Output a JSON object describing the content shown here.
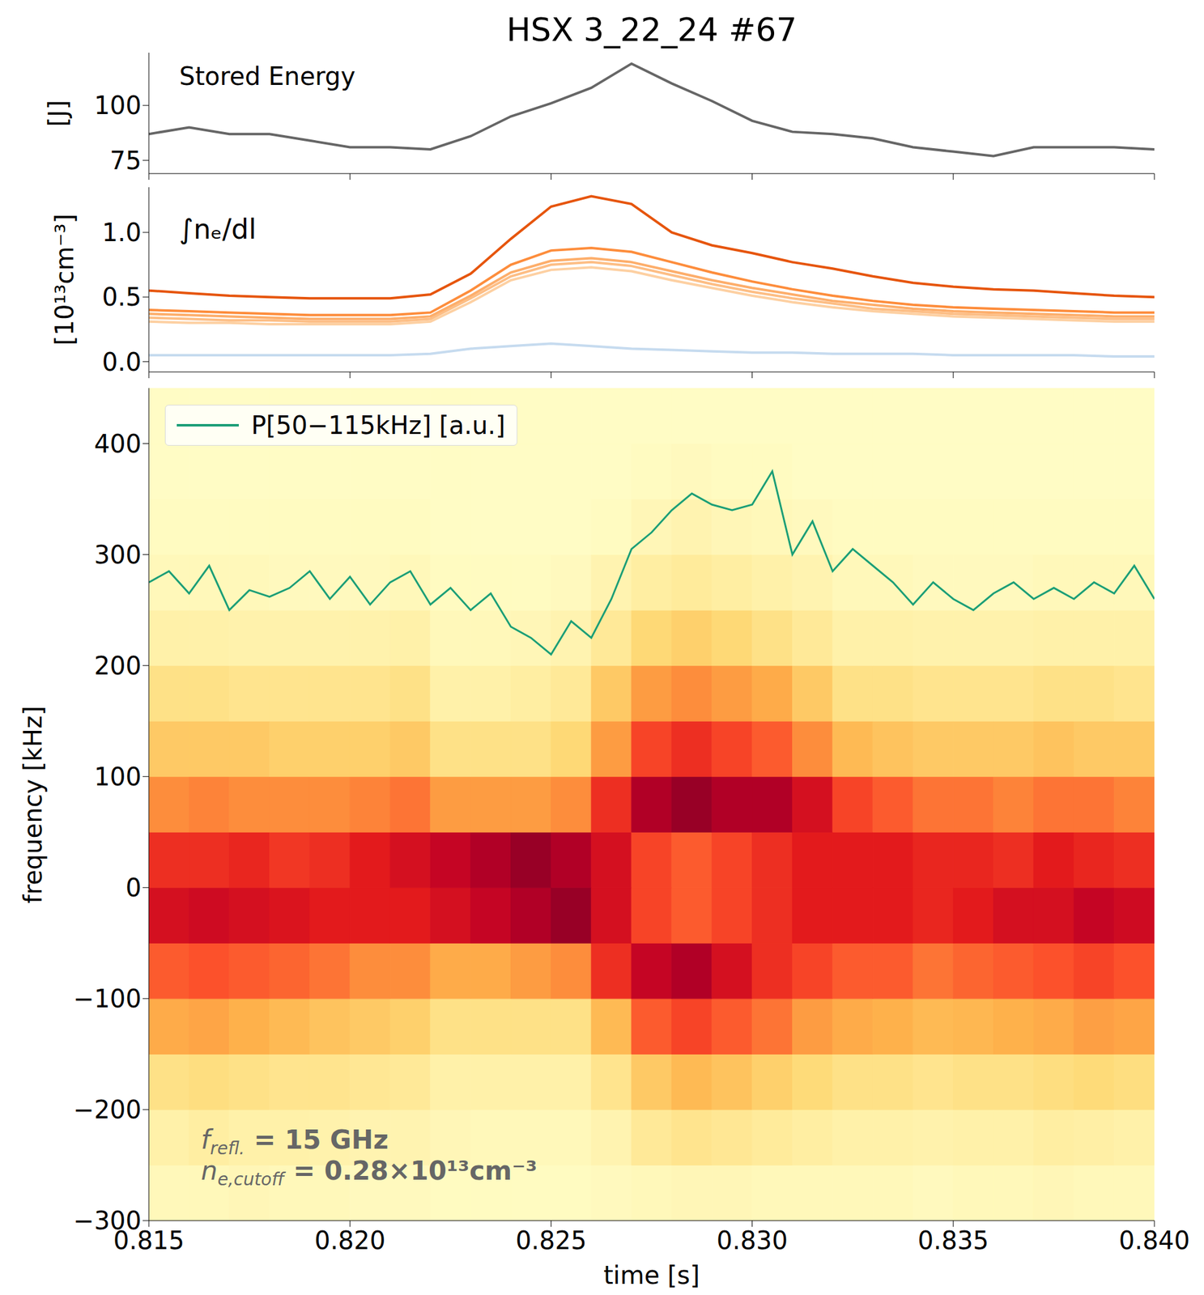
{
  "chart_data": [
    {
      "type": "line",
      "title": "HSX 3_22_24 #67",
      "annotations": [
        "Stored Energy"
      ],
      "ylabel": "[J]",
      "x": [
        0.815,
        0.816,
        0.817,
        0.818,
        0.819,
        0.82,
        0.821,
        0.822,
        0.823,
        0.824,
        0.825,
        0.826,
        0.827,
        0.828,
        0.829,
        0.83,
        0.831,
        0.832,
        0.833,
        0.834,
        0.835,
        0.836,
        0.837,
        0.838,
        0.839,
        0.84
      ],
      "xlim": [
        0.815,
        0.84
      ],
      "xticks": [
        0.815,
        0.82,
        0.825,
        0.83,
        0.835,
        0.84
      ],
      "ylim": [
        69,
        124
      ],
      "yticks": [
        75,
        100
      ],
      "tick_labels": "y",
      "series": [
        {
          "color": "#666666",
          "values": [
            87,
            90,
            87,
            87,
            84,
            81,
            81,
            80,
            86,
            95,
            101,
            108,
            119,
            110,
            102,
            93,
            88,
            87,
            85,
            81,
            79,
            77,
            81,
            81,
            81,
            80
          ]
        }
      ]
    },
    {
      "type": "line",
      "annotations": [
        "∫nₑ/dl"
      ],
      "ylabel": "[10¹³cm⁻³]",
      "x": [
        0.815,
        0.816,
        0.817,
        0.818,
        0.819,
        0.82,
        0.821,
        0.822,
        0.823,
        0.824,
        0.825,
        0.826,
        0.827,
        0.828,
        0.829,
        0.83,
        0.831,
        0.832,
        0.833,
        0.834,
        0.835,
        0.836,
        0.837,
        0.838,
        0.839,
        0.84
      ],
      "xlim": [
        0.815,
        0.84
      ],
      "xticks": [
        0.815,
        0.82,
        0.825,
        0.83,
        0.835,
        0.84
      ],
      "ylim": [
        -0.08,
        1.35
      ],
      "yticks": [
        {
          "value": 0,
          "label": "0.0"
        },
        0.5,
        {
          "value": 1,
          "label": "1.0"
        }
      ],
      "tick_labels": "y",
      "series": [
        {
          "color": "#c6dbef",
          "values": [
            0.05,
            0.05,
            0.05,
            0.05,
            0.05,
            0.05,
            0.05,
            0.06,
            0.1,
            0.12,
            0.14,
            0.12,
            0.1,
            0.09,
            0.08,
            0.07,
            0.07,
            0.06,
            0.06,
            0.06,
            0.05,
            0.05,
            0.05,
            0.05,
            0.04,
            0.04
          ]
        },
        {
          "color": "#fdd0a2",
          "values": [
            0.31,
            0.3,
            0.3,
            0.29,
            0.29,
            0.29,
            0.29,
            0.31,
            0.46,
            0.63,
            0.71,
            0.73,
            0.7,
            0.63,
            0.57,
            0.51,
            0.46,
            0.42,
            0.39,
            0.37,
            0.35,
            0.34,
            0.33,
            0.32,
            0.31,
            0.31
          ]
        },
        {
          "color": "#fdbe85",
          "values": [
            0.34,
            0.33,
            0.32,
            0.32,
            0.31,
            0.31,
            0.31,
            0.33,
            0.49,
            0.66,
            0.75,
            0.77,
            0.74,
            0.67,
            0.6,
            0.54,
            0.49,
            0.45,
            0.41,
            0.39,
            0.37,
            0.36,
            0.35,
            0.34,
            0.33,
            0.33
          ]
        },
        {
          "color": "#fdae6b",
          "values": [
            0.37,
            0.36,
            0.35,
            0.34,
            0.33,
            0.33,
            0.33,
            0.35,
            0.51,
            0.69,
            0.78,
            0.8,
            0.77,
            0.7,
            0.63,
            0.57,
            0.52,
            0.47,
            0.44,
            0.41,
            0.39,
            0.38,
            0.37,
            0.36,
            0.35,
            0.35
          ]
        },
        {
          "color": "#fd8d3c",
          "values": [
            0.4,
            0.39,
            0.38,
            0.37,
            0.36,
            0.36,
            0.36,
            0.38,
            0.55,
            0.75,
            0.86,
            0.88,
            0.85,
            0.77,
            0.69,
            0.62,
            0.56,
            0.51,
            0.47,
            0.44,
            0.42,
            0.41,
            0.4,
            0.39,
            0.38,
            0.38
          ]
        },
        {
          "color": "#e6550d",
          "values": [
            0.55,
            0.53,
            0.51,
            0.5,
            0.49,
            0.49,
            0.49,
            0.52,
            0.68,
            0.95,
            1.2,
            1.28,
            1.22,
            1.0,
            0.9,
            0.84,
            0.77,
            0.72,
            0.66,
            0.61,
            0.58,
            0.56,
            0.55,
            0.53,
            0.51,
            0.5
          ]
        }
      ]
    },
    {
      "type": "heatmap",
      "xlabel": "time [s]",
      "ylabel": "frequency [kHz]",
      "xlim": [
        0.815,
        0.84
      ],
      "xticks": [
        0.815,
        {
          "value": 0.82,
          "label": "0.820"
        },
        0.825,
        {
          "value": 0.83,
          "label": "0.830"
        },
        0.835,
        {
          "value": 0.84,
          "label": "0.840"
        }
      ],
      "ylim": [
        -300,
        450
      ],
      "yticks": [
        {
          "value": -300,
          "label": "−300"
        },
        {
          "value": -200,
          "label": "−200"
        },
        {
          "value": -100,
          "label": "−100"
        },
        0,
        100,
        200,
        300,
        400
      ],
      "legend": "upper left",
      "x_edges": [
        0.815,
        0.816,
        0.817,
        0.818,
        0.819,
        0.82,
        0.821,
        0.822,
        0.823,
        0.824,
        0.825,
        0.826,
        0.827,
        0.828,
        0.829,
        0.83,
        0.831,
        0.832,
        0.833,
        0.834,
        0.835,
        0.836,
        0.837,
        0.838,
        0.839,
        0.84
      ],
      "y_edges": [
        -300,
        -250,
        -200,
        -150,
        -100,
        -50,
        0,
        50,
        100,
        150,
        200,
        250,
        300,
        350,
        400,
        450
      ],
      "zlim": [
        0,
        10
      ],
      "cells": [
        [
          0.5,
          0.5,
          0.6,
          0.5,
          0.5,
          0.4,
          0.4,
          0.3,
          0.3,
          0.3,
          0.3,
          0.4,
          0.5,
          0.6,
          0.6,
          0.5,
          0.5,
          0.5,
          0.5,
          0.4,
          0.5,
          0.5,
          0.6,
          0.5,
          0.5
        ],
        [
          1,
          1.2,
          1,
          1,
          0.9,
          0.8,
          0.8,
          0.6,
          0.5,
          0.5,
          0.5,
          0.8,
          1.5,
          1.8,
          1.6,
          1.4,
          1.2,
          1,
          1,
          0.9,
          1,
          1,
          1.2,
          1.1,
          1
        ],
        [
          2,
          2.2,
          2,
          1.8,
          1.8,
          1.6,
          1.5,
          1,
          1,
          1,
          1,
          1.8,
          3,
          3.5,
          3.2,
          2.8,
          2.4,
          2,
          2,
          1.8,
          2,
          2,
          2.2,
          2.4,
          2.2
        ],
        [
          4,
          4.2,
          3.8,
          3.5,
          3.2,
          3,
          2.8,
          2,
          2,
          2,
          2,
          3.5,
          6,
          6.5,
          6,
          5.5,
          4.5,
          4,
          3.8,
          3.5,
          3.6,
          3.8,
          4,
          4.4,
          4.2
        ],
        [
          6,
          6.2,
          6,
          5.8,
          5.5,
          5,
          5,
          4,
          4,
          4.5,
          5,
          7,
          8.5,
          9,
          8,
          7,
          6.5,
          6,
          6,
          5.5,
          5.8,
          6,
          6.2,
          6.5,
          6.2
        ],
        [
          8,
          8.2,
          8,
          7.8,
          7.5,
          7.5,
          7.5,
          8,
          8.5,
          9,
          9.5,
          8,
          6.5,
          6,
          6.5,
          7,
          7.5,
          7.5,
          7.5,
          7.2,
          7.5,
          8,
          8,
          8.5,
          8.2
        ],
        [
          7,
          7,
          7.2,
          6.8,
          7,
          7.5,
          8,
          8.5,
          9,
          9.5,
          9,
          8,
          6.5,
          6,
          6.5,
          7,
          7.5,
          7.5,
          7.5,
          7.2,
          7.2,
          7,
          7.5,
          7.2,
          7
        ],
        [
          5,
          5.2,
          5,
          5,
          5,
          5.2,
          5.5,
          4.5,
          4.5,
          4.5,
          5,
          7,
          9,
          9.5,
          9,
          9,
          8,
          6.5,
          6,
          5.5,
          5.5,
          5.2,
          5.5,
          5.5,
          5.2
        ],
        [
          3,
          3,
          3,
          2.8,
          2.8,
          2.8,
          3,
          2,
          2,
          2,
          2.5,
          4.5,
          6.5,
          7,
          6.5,
          6,
          5,
          3.5,
          3.2,
          3,
          3,
          3,
          3.2,
          3,
          3
        ],
        [
          2,
          2,
          1.8,
          1.8,
          1.8,
          1.8,
          2,
          1,
          1,
          1.2,
          1.5,
          3,
          4.5,
          5,
          4.5,
          4,
          3,
          2,
          2,
          1.8,
          1.8,
          1.8,
          2,
          2,
          1.8
        ],
        [
          1,
          1,
          0.9,
          0.9,
          0.9,
          0.9,
          1,
          0.5,
          0.5,
          0.6,
          0.8,
          1.5,
          2.5,
          2.8,
          2.5,
          2,
          1.5,
          1,
          1,
          0.9,
          0.9,
          0.9,
          1,
          1,
          1
        ],
        [
          0.5,
          0.5,
          0.5,
          0.4,
          0.4,
          0.4,
          0.5,
          0.3,
          0.3,
          0.3,
          0.4,
          0.8,
          1.2,
          1.4,
          1.2,
          1,
          0.8,
          0.5,
          0.5,
          0.4,
          0.4,
          0.4,
          0.5,
          0.5,
          0.5
        ],
        [
          0.3,
          0.3,
          0.3,
          0.3,
          0.3,
          0.3,
          0.3,
          0.2,
          0.2,
          0.2,
          0.2,
          0.3,
          0.6,
          0.8,
          0.6,
          0.5,
          0.4,
          0.3,
          0.3,
          0.3,
          0.3,
          0.3,
          0.3,
          0.3,
          0.3
        ],
        [
          0.2,
          0.2,
          0.2,
          0.2,
          0.2,
          0.2,
          0.2,
          0.2,
          0.2,
          0.2,
          0.2,
          0.2,
          0.3,
          0.4,
          0.3,
          0.3,
          0.2,
          0.2,
          0.2,
          0.2,
          0.2,
          0.2,
          0.2,
          0.2,
          0.2
        ],
        [
          0.2,
          0.2,
          0.2,
          0.2,
          0.2,
          0.2,
          0.2,
          0.2,
          0.2,
          0.2,
          0.2,
          0.2,
          0.2,
          0.2,
          0.2,
          0.2,
          0.2,
          0.2,
          0.2,
          0.2,
          0.2,
          0.2,
          0.2,
          0.2,
          0.2
        ]
      ],
      "series": [
        {
          "name": "P[50−115kHz] [a.u.]",
          "color": "#1b9e77",
          "x": [
            0.815,
            0.8155,
            0.816,
            0.8165,
            0.817,
            0.8175,
            0.818,
            0.8185,
            0.819,
            0.8195,
            0.82,
            0.8205,
            0.821,
            0.8215,
            0.822,
            0.8225,
            0.823,
            0.8235,
            0.824,
            0.8245,
            0.825,
            0.8255,
            0.826,
            0.8265,
            0.827,
            0.8275,
            0.828,
            0.8285,
            0.829,
            0.8295,
            0.83,
            0.8305,
            0.831,
            0.8315,
            0.832,
            0.8325,
            0.833,
            0.8335,
            0.834,
            0.8345,
            0.835,
            0.8355,
            0.836,
            0.8365,
            0.837,
            0.8375,
            0.838,
            0.8385,
            0.839,
            0.8395,
            0.84
          ],
          "values": [
            275,
            285,
            265,
            290,
            250,
            268,
            262,
            270,
            285,
            260,
            280,
            255,
            275,
            285,
            255,
            270,
            250,
            265,
            235,
            225,
            210,
            240,
            225,
            260,
            305,
            320,
            340,
            355,
            345,
            340,
            345,
            375,
            300,
            330,
            285,
            305,
            290,
            275,
            255,
            275,
            260,
            250,
            265,
            275,
            260,
            270,
            260,
            275,
            265,
            290,
            260
          ]
        }
      ],
      "annotations": [
        {
          "base": "f",
          "sub": "refl.",
          "text": " = 15 GHz"
        },
        {
          "base": "n",
          "sub": "e,cutoff",
          "text": " = 0.28×10¹³cm⁻³"
        }
      ]
    }
  ]
}
